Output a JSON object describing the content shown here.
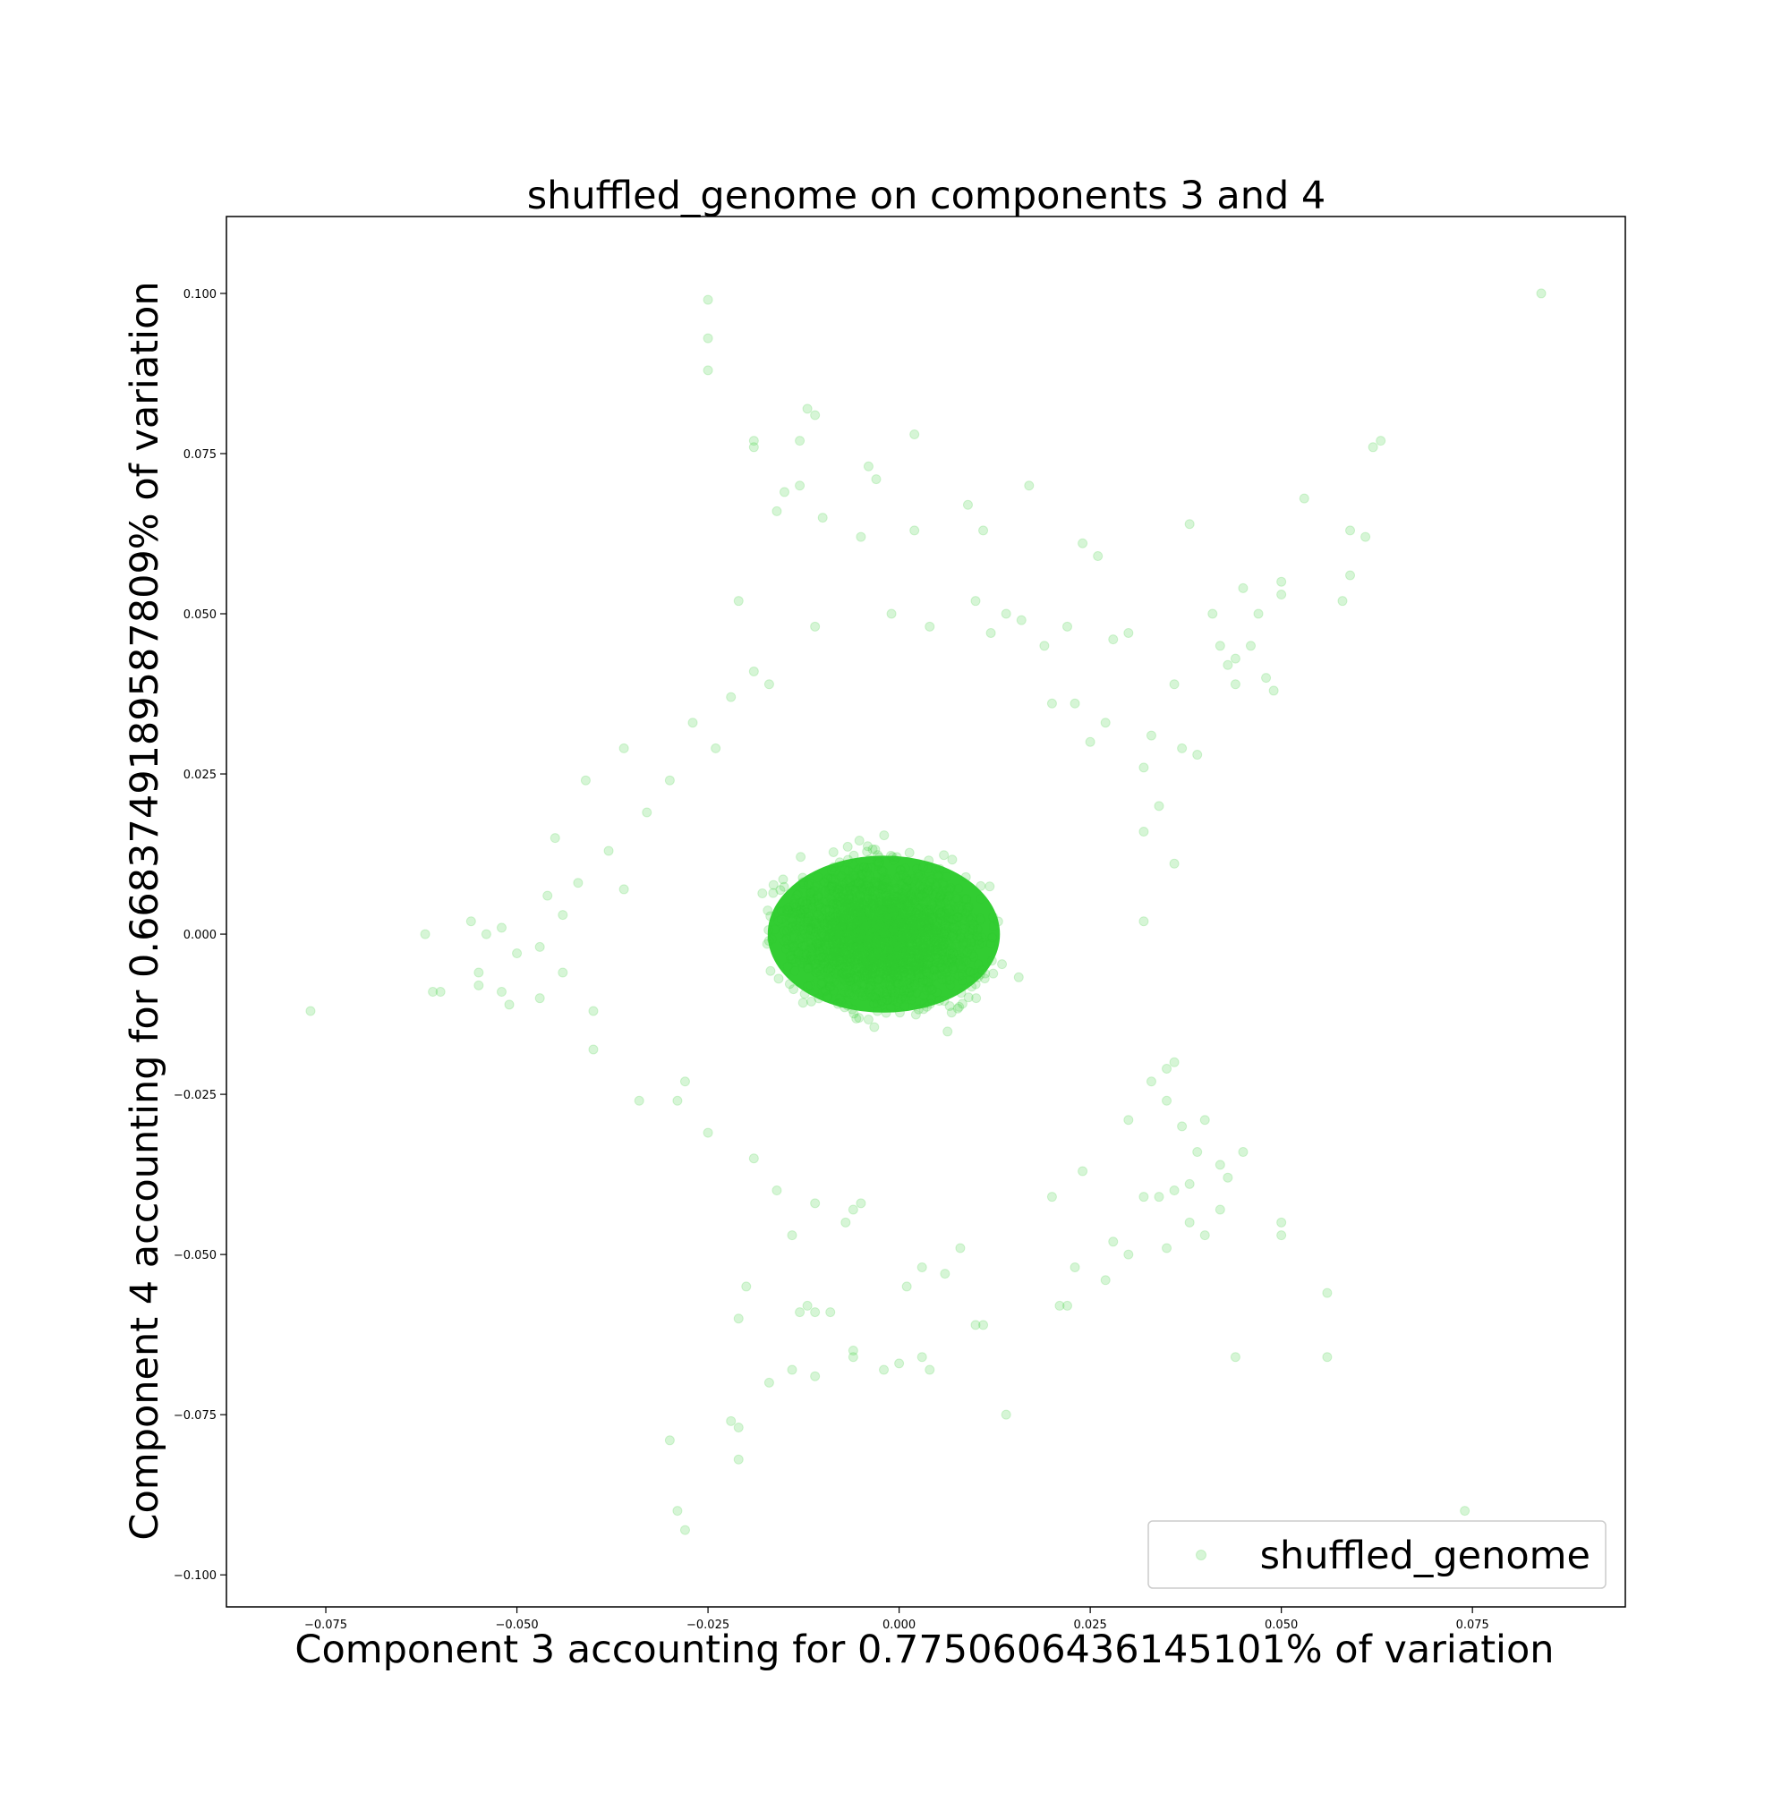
{
  "chart_data": {
    "type": "scatter",
    "title": "shuffled_genome on components 3 and 4",
    "xlabel": "Component 3 accounting for 0.775060643614510​1% of variation",
    "ylabel": "Component 4 accounting for 0.668374918958780​9% of variation",
    "xlim": [
      -0.088,
      0.095
    ],
    "ylim": [
      -0.105,
      0.112
    ],
    "xticks": [
      -0.075,
      -0.05,
      -0.025,
      0.0,
      0.025,
      0.05,
      0.075
    ],
    "xtick_labels": [
      "−0.075",
      "−0.050",
      "−0.025",
      "0.000",
      "0.025",
      "0.050",
      "0.075"
    ],
    "yticks": [
      -0.1,
      -0.075,
      -0.05,
      -0.025,
      0.0,
      0.025,
      0.05,
      0.075,
      0.1
    ],
    "ytick_labels": [
      "−0.100",
      "−0.075",
      "−0.050",
      "−0.025",
      "0.000",
      "0.025",
      "0.050",
      "0.075",
      "0.100"
    ],
    "grid": false,
    "legend_position": "lower-right",
    "series": [
      {
        "name": "shuffled_genome",
        "color": "#32cd32",
        "alpha": 0.2,
        "core_cluster": {
          "x_range": [
            -0.025,
            0.024
          ],
          "y_range": [
            -0.024,
            0.025
          ],
          "center": [
            -0.002,
            0.0
          ]
        },
        "points": [
          [
            0.084,
            0.1
          ],
          [
            -0.025,
            0.099
          ],
          [
            -0.025,
            0.093
          ],
          [
            -0.025,
            0.088
          ],
          [
            -0.012,
            0.082
          ],
          [
            -0.011,
            0.081
          ],
          [
            0.002,
            0.078
          ],
          [
            -0.019,
            0.077
          ],
          [
            -0.019,
            0.076
          ],
          [
            0.063,
            0.077
          ],
          [
            0.062,
            0.076
          ],
          [
            -0.013,
            0.077
          ],
          [
            -0.004,
            0.073
          ],
          [
            -0.003,
            0.071
          ],
          [
            0.017,
            0.07
          ],
          [
            -0.015,
            0.069
          ],
          [
            -0.013,
            0.07
          ],
          [
            0.053,
            0.068
          ],
          [
            0.009,
            0.067
          ],
          [
            -0.01,
            0.065
          ],
          [
            -0.016,
            0.066
          ],
          [
            0.059,
            0.063
          ],
          [
            0.061,
            0.062
          ],
          [
            0.038,
            0.064
          ],
          [
            0.024,
            0.061
          ],
          [
            0.011,
            0.063
          ],
          [
            -0.005,
            0.062
          ],
          [
            0.002,
            0.063
          ],
          [
            0.026,
            0.059
          ],
          [
            0.059,
            0.056
          ],
          [
            0.05,
            0.055
          ],
          [
            0.05,
            0.053
          ],
          [
            0.058,
            0.052
          ],
          [
            0.045,
            0.054
          ],
          [
            0.047,
            0.05
          ],
          [
            0.041,
            0.05
          ],
          [
            0.042,
            0.045
          ],
          [
            0.044,
            0.043
          ],
          [
            0.043,
            0.042
          ],
          [
            0.046,
            0.045
          ],
          [
            0.048,
            0.04
          ],
          [
            0.049,
            0.038
          ],
          [
            0.036,
            0.039
          ],
          [
            0.044,
            0.039
          ],
          [
            0.039,
            0.028
          ],
          [
            0.037,
            0.029
          ],
          [
            0.033,
            0.031
          ],
          [
            0.032,
            0.026
          ],
          [
            0.034,
            0.02
          ],
          [
            0.032,
            0.016
          ],
          [
            0.036,
            0.011
          ],
          [
            0.032,
            0.002
          ],
          [
            -0.021,
            0.052
          ],
          [
            -0.011,
            0.048
          ],
          [
            0.01,
            0.052
          ],
          [
            0.016,
            0.049
          ],
          [
            -0.019,
            0.041
          ],
          [
            -0.017,
            0.039
          ],
          [
            -0.027,
            0.033
          ],
          [
            -0.036,
            0.029
          ],
          [
            -0.041,
            0.024
          ],
          [
            -0.045,
            0.015
          ],
          [
            -0.046,
            0.006
          ],
          [
            -0.042,
            0.008
          ],
          [
            -0.062,
            0.0
          ],
          [
            -0.056,
            0.002
          ],
          [
            -0.054,
            0.0
          ],
          [
            -0.052,
            0.001
          ],
          [
            -0.05,
            -0.003
          ],
          [
            -0.055,
            -0.006
          ],
          [
            -0.055,
            -0.008
          ],
          [
            -0.06,
            -0.009
          ],
          [
            -0.061,
            -0.009
          ],
          [
            -0.077,
            -0.012
          ],
          [
            -0.052,
            -0.009
          ],
          [
            -0.051,
            -0.011
          ],
          [
            -0.047,
            -0.01
          ],
          [
            -0.044,
            -0.006
          ],
          [
            -0.04,
            -0.012
          ],
          [
            -0.04,
            -0.018
          ],
          [
            -0.034,
            -0.026
          ],
          [
            -0.028,
            -0.023
          ],
          [
            -0.029,
            -0.026
          ],
          [
            -0.025,
            -0.031
          ],
          [
            -0.019,
            -0.035
          ],
          [
            -0.016,
            -0.04
          ],
          [
            -0.011,
            -0.042
          ],
          [
            -0.006,
            -0.043
          ],
          [
            -0.005,
            -0.042
          ],
          [
            -0.007,
            -0.045
          ],
          [
            -0.014,
            -0.047
          ],
          [
            -0.02,
            -0.055
          ],
          [
            -0.021,
            -0.06
          ],
          [
            -0.012,
            -0.058
          ],
          [
            -0.013,
            -0.059
          ],
          [
            -0.011,
            -0.059
          ],
          [
            -0.009,
            -0.059
          ],
          [
            -0.014,
            -0.068
          ],
          [
            -0.017,
            -0.07
          ],
          [
            -0.011,
            -0.069
          ],
          [
            -0.006,
            -0.066
          ],
          [
            -0.006,
            -0.065
          ],
          [
            -0.002,
            -0.068
          ],
          [
            0.0,
            -0.067
          ],
          [
            0.003,
            -0.066
          ],
          [
            0.004,
            -0.068
          ],
          [
            0.01,
            -0.061
          ],
          [
            0.011,
            -0.061
          ],
          [
            0.014,
            -0.075
          ],
          [
            0.021,
            -0.058
          ],
          [
            0.022,
            -0.058
          ],
          [
            0.027,
            -0.054
          ],
          [
            0.023,
            -0.052
          ],
          [
            0.03,
            -0.05
          ],
          [
            0.028,
            -0.048
          ],
          [
            0.032,
            -0.041
          ],
          [
            0.034,
            -0.041
          ],
          [
            0.036,
            -0.04
          ],
          [
            0.038,
            -0.039
          ],
          [
            0.038,
            -0.045
          ],
          [
            0.035,
            -0.049
          ],
          [
            0.04,
            -0.047
          ],
          [
            0.042,
            -0.036
          ],
          [
            0.043,
            -0.038
          ],
          [
            0.045,
            -0.034
          ],
          [
            0.039,
            -0.034
          ],
          [
            0.04,
            -0.029
          ],
          [
            0.042,
            -0.043
          ],
          [
            0.05,
            -0.045
          ],
          [
            0.05,
            -0.047
          ],
          [
            0.056,
            -0.056
          ],
          [
            0.044,
            -0.066
          ],
          [
            0.056,
            -0.066
          ],
          [
            0.074,
            -0.09
          ],
          [
            -0.022,
            -0.076
          ],
          [
            -0.021,
            -0.077
          ],
          [
            -0.021,
            -0.082
          ],
          [
            -0.03,
            -0.079
          ],
          [
            -0.029,
            -0.09
          ],
          [
            -0.028,
            -0.093
          ],
          [
            0.03,
            -0.029
          ],
          [
            0.033,
            -0.023
          ],
          [
            0.035,
            -0.026
          ],
          [
            0.037,
            -0.03
          ],
          [
            0.035,
            -0.021
          ],
          [
            0.036,
            -0.02
          ],
          [
            0.024,
            -0.037
          ],
          [
            0.02,
            -0.041
          ],
          [
            0.008,
            -0.049
          ],
          [
            0.006,
            -0.053
          ],
          [
            0.003,
            -0.052
          ],
          [
            0.001,
            -0.055
          ],
          [
            0.028,
            0.046
          ],
          [
            0.03,
            0.047
          ],
          [
            0.022,
            0.048
          ],
          [
            0.019,
            0.045
          ],
          [
            0.014,
            0.05
          ],
          [
            0.012,
            0.047
          ],
          [
            0.004,
            0.048
          ],
          [
            -0.001,
            0.05
          ],
          [
            0.02,
            0.036
          ],
          [
            0.023,
            0.036
          ],
          [
            0.025,
            0.03
          ],
          [
            0.027,
            0.033
          ],
          [
            -0.022,
            0.037
          ],
          [
            -0.024,
            0.029
          ],
          [
            -0.03,
            0.024
          ],
          [
            -0.033,
            0.019
          ],
          [
            -0.038,
            0.013
          ],
          [
            -0.036,
            0.007
          ],
          [
            -0.044,
            0.003
          ],
          [
            -0.047,
            -0.002
          ]
        ]
      }
    ]
  }
}
